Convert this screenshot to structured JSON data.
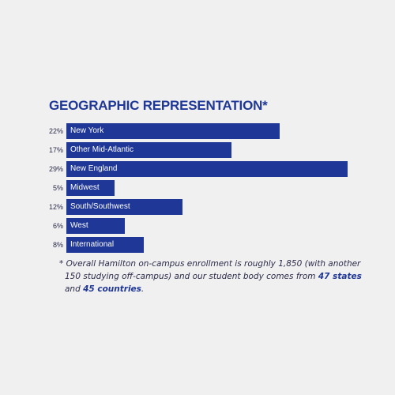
{
  "chart_data": {
    "type": "bar",
    "title": "GEOGRAPHIC REPRESENTATION*",
    "orientation": "horizontal",
    "categories": [
      "New York",
      "Other Mid-Atlantic",
      "New England",
      "Midwest",
      "South/Southwest",
      "West",
      "International"
    ],
    "values": [
      22,
      17,
      29,
      5,
      12,
      6,
      8
    ],
    "value_labels": [
      "22%",
      "17%",
      "29%",
      "5%",
      "12%",
      "6%",
      "8%"
    ],
    "unit": "%",
    "bar_color": "#1f3796"
  },
  "footnote": {
    "line1": "* Overall Hamilton on-campus  enrollment is roughly 1,850 (with another",
    "line2": "150 studying off-campus) and our student body comes from ",
    "states": "47 states",
    "line3_start": "and ",
    "countries": "45 countries",
    "line3_end": "."
  },
  "colors": {
    "background": "#f0f0f0",
    "accent": "#1f3796",
    "text": "#2b2b4a"
  }
}
